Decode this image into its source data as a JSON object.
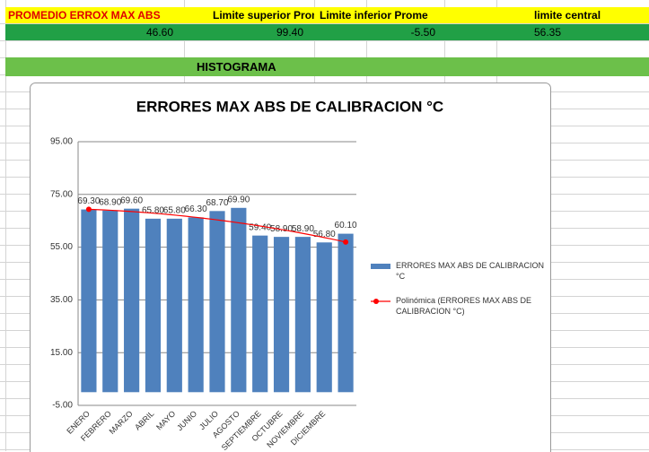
{
  "header": [
    "PROMEDIO ERROX MAX ABS",
    "Limite superior Promedi",
    "Limite inferior Prome",
    "limite central"
  ],
  "values": [
    "46.60",
    "99.40",
    "-5.50",
    "56.35"
  ],
  "section_title": "HISTOGRAMA",
  "chart_data": {
    "type": "bar",
    "title": "ERRORES  MAX ABS DE CALIBRACION °C",
    "categories": [
      "ENERO",
      "FEBRERO",
      "MARZO",
      "ABRIL",
      "MAYO",
      "JUNIO",
      "JULIO",
      "AGOSTO",
      "SEPTIEMBRE",
      "OCTUBRE",
      "NOVIEMBRE",
      "DICIEMBRE",
      null
    ],
    "series": [
      {
        "name": "ERRORES  MAX ABS DE CALIBRACION °C",
        "color": "#4f81bd",
        "values": [
          69.3,
          68.9,
          69.6,
          65.8,
          65.8,
          66.3,
          68.7,
          69.9,
          59.4,
          58.9,
          58.9,
          56.8,
          60.1
        ],
        "value_labels": [
          "69.30",
          "68.90",
          "69.60",
          "65.80",
          "65.80",
          "66.30",
          "68.70",
          "69.90",
          "59.40",
          "58.90",
          "58.90",
          "56.80",
          "60.10"
        ]
      }
    ],
    "trendline": {
      "name": "Polinómica (ERRORES  MAX ABS DE CALIBRACION °C)",
      "color": "#ff0000"
    },
    "ylim": [
      -5,
      95
    ],
    "yticks": [
      {
        "value": -5,
        "label": "-5.00"
      },
      {
        "value": 15,
        "label": "15.00"
      },
      {
        "value": 35,
        "label": "35.00"
      },
      {
        "value": 55,
        "label": "55.00"
      },
      {
        "value": 75,
        "label": "75.00"
      },
      {
        "value": 95,
        "label": "95.00"
      }
    ],
    "grid": true,
    "legend": "right"
  }
}
